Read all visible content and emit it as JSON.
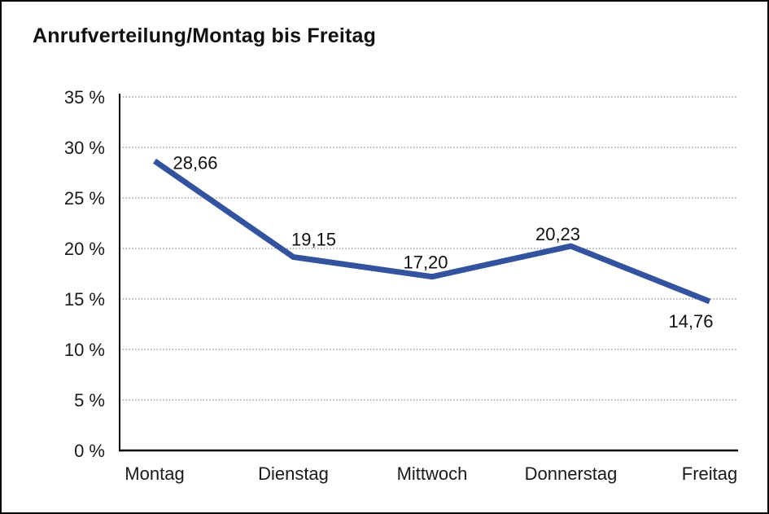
{
  "page": {
    "background": "#ffffff",
    "border_color": "#000000"
  },
  "chart": {
    "title": "Anrufverteilung/Montag bis Freitag"
  },
  "chart_data": {
    "type": "line",
    "title": "Anrufverteilung/Montag bis Freitag",
    "categories": [
      "Montag",
      "Dienstag",
      "Mittwoch",
      "Donnerstag",
      "Freitag"
    ],
    "values": [
      28.66,
      19.15,
      17.2,
      20.23,
      14.76
    ],
    "value_labels": [
      "28,66",
      "19,15",
      "17,20",
      "20,23",
      "14,76"
    ],
    "xlabel": "",
    "ylabel": "",
    "ylim": [
      0,
      35
    ],
    "ytick_step": 5,
    "ytick_labels": [
      "0 %",
      "5 %",
      "10 %",
      "15 %",
      "20 %",
      "25 %",
      "30 %",
      "35 %"
    ],
    "grid": "horizontal-dotted",
    "legend": "none",
    "line_color": "#34539F",
    "grid_color": "#8a8a8a",
    "axis_color": "#000000",
    "text_color": "#1a1a1a"
  }
}
